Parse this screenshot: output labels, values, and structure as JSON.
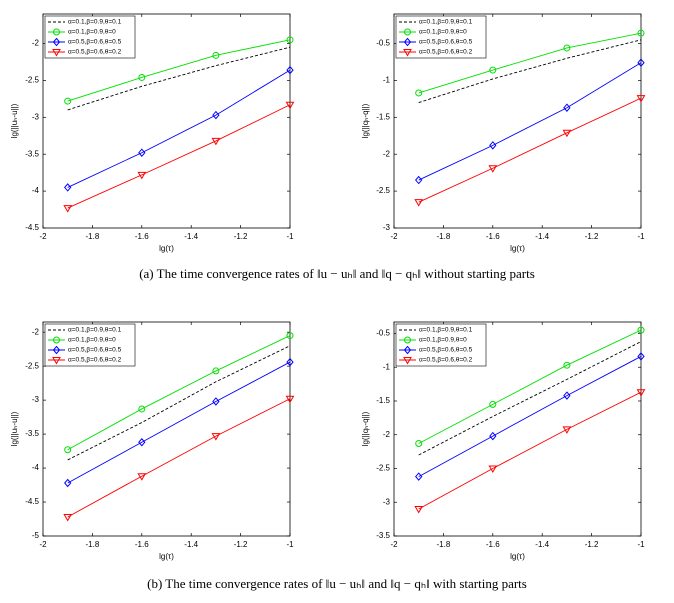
{
  "chart_data": [
    {
      "type": "line",
      "x_label": "lg(τ)",
      "y_label": "lg(||uₕ-u||)",
      "x": [
        -1.9,
        -1.6,
        -1.3,
        -1
      ],
      "xlim": [
        -2,
        -1
      ],
      "xticks": [
        -2,
        -1.8,
        -1.6,
        -1.4,
        -1.2,
        -1
      ],
      "ylim": [
        -4.5,
        -1.6
      ],
      "yticks": [
        -4.5,
        -4,
        -3.5,
        -3,
        -2.5,
        -2
      ],
      "legend": "upper left",
      "series": [
        {
          "name": "α=0.1,β=0.9,θ=0.1",
          "color": "#000000",
          "dash": true,
          "marker": "none",
          "values": [
            -2.9,
            -2.58,
            -2.3,
            -2.05
          ]
        },
        {
          "name": "α=0.1,β=0.9,θ=0",
          "color": "#00e000",
          "dash": false,
          "marker": "circle",
          "values": [
            -2.78,
            -2.46,
            -2.16,
            -1.95
          ]
        },
        {
          "name": "α=0.5,β=0.6,θ=0.5",
          "color": "#0000ff",
          "dash": false,
          "marker": "diamond",
          "values": [
            -3.95,
            -3.48,
            -2.97,
            -2.36
          ]
        },
        {
          "name": "α=0.5,β=0.6,θ=0.2",
          "color": "#ff0000",
          "dash": false,
          "marker": "triangle-down",
          "values": [
            -4.23,
            -3.78,
            -3.32,
            -2.83
          ]
        }
      ]
    },
    {
      "type": "line",
      "x_label": "lg(τ)",
      "y_label": "lg(||qₕ-q||)",
      "x": [
        -1.9,
        -1.6,
        -1.3,
        -1
      ],
      "xlim": [
        -2,
        -1
      ],
      "xticks": [
        -2,
        -1.8,
        -1.6,
        -1.4,
        -1.2,
        -1
      ],
      "ylim": [
        -3,
        -0.1
      ],
      "yticks": [
        -3,
        -2.5,
        -2,
        -1.5,
        -1,
        -0.5
      ],
      "legend": "upper left",
      "series": [
        {
          "name": "α=0.1,β=0.9,θ=0.1",
          "color": "#000000",
          "dash": true,
          "marker": "none",
          "values": [
            -1.3,
            -0.98,
            -0.7,
            -0.45
          ]
        },
        {
          "name": "α=0.1,β=0.9,θ=0",
          "color": "#00e000",
          "dash": false,
          "marker": "circle",
          "values": [
            -1.17,
            -0.86,
            -0.56,
            -0.36
          ]
        },
        {
          "name": "α=0.5,β=0.6,θ=0.5",
          "color": "#0000ff",
          "dash": false,
          "marker": "diamond",
          "values": [
            -2.35,
            -1.88,
            -1.37,
            -0.76
          ]
        },
        {
          "name": "α=0.5,β=0.6,θ=0.2",
          "color": "#ff0000",
          "dash": false,
          "marker": "triangle-down",
          "values": [
            -2.65,
            -2.19,
            -1.71,
            -1.24
          ]
        }
      ]
    },
    {
      "type": "line",
      "x_label": "lg(τ)",
      "y_label": "lg(||uₕ-u||)",
      "x": [
        -1.9,
        -1.6,
        -1.3,
        -1
      ],
      "xlim": [
        -2,
        -1
      ],
      "xticks": [
        -2,
        -1.8,
        -1.6,
        -1.4,
        -1.2,
        -1
      ],
      "ylim": [
        -5,
        -1.85
      ],
      "yticks": [
        -5,
        -4.5,
        -4,
        -3.5,
        -3,
        -2.5,
        -2
      ],
      "legend": "upper left",
      "series": [
        {
          "name": "α=0.1,β=0.9,θ=0.1",
          "color": "#000000",
          "dash": true,
          "marker": "none",
          "values": [
            -3.88,
            -3.33,
            -2.73,
            -2.2
          ]
        },
        {
          "name": "α=0.1,β=0.9,θ=0",
          "color": "#00e000",
          "dash": false,
          "marker": "circle",
          "values": [
            -3.73,
            -3.13,
            -2.57,
            -2.05
          ]
        },
        {
          "name": "α=0.5,β=0.6,θ=0.5",
          "color": "#0000ff",
          "dash": false,
          "marker": "diamond",
          "values": [
            -4.22,
            -3.62,
            -3.02,
            -2.44
          ]
        },
        {
          "name": "α=0.5,β=0.6,θ=0.2",
          "color": "#ff0000",
          "dash": false,
          "marker": "triangle-down",
          "values": [
            -4.72,
            -4.12,
            -3.53,
            -2.98
          ]
        }
      ]
    },
    {
      "type": "line",
      "x_label": "lg(τ)",
      "y_label": "lg(||qₕ-q||)",
      "x": [
        -1.9,
        -1.6,
        -1.3,
        -1
      ],
      "xlim": [
        -2,
        -1
      ],
      "xticks": [
        -2,
        -1.8,
        -1.6,
        -1.4,
        -1.2,
        -1
      ],
      "ylim": [
        -3.5,
        -0.33
      ],
      "yticks": [
        -3.5,
        -3,
        -2.5,
        -2,
        -1.5,
        -1,
        -0.5
      ],
      "legend": "upper left",
      "series": [
        {
          "name": "α=0.1,β=0.9,θ=0.1",
          "color": "#000000",
          "dash": true,
          "marker": "none",
          "values": [
            -2.3,
            -1.73,
            -1.18,
            -0.62
          ]
        },
        {
          "name": "α=0.1,β=0.9,θ=0",
          "color": "#00e000",
          "dash": false,
          "marker": "circle",
          "values": [
            -2.13,
            -1.55,
            -0.97,
            -0.45
          ]
        },
        {
          "name": "α=0.5,β=0.6,θ=0.5",
          "color": "#0000ff",
          "dash": false,
          "marker": "diamond",
          "values": [
            -2.62,
            -2.02,
            -1.42,
            -0.84
          ]
        },
        {
          "name": "α=0.5,β=0.6,θ=0.2",
          "color": "#ff0000",
          "dash": false,
          "marker": "triangle-down",
          "values": [
            -3.1,
            -2.5,
            -1.92,
            -1.37
          ]
        }
      ]
    }
  ],
  "captions": [
    "(a) The time convergence rates of ‖u − uₕ‖ and ‖q − qₕ‖ without starting parts",
    "(b) The time convergence rates of ‖u − uₕ‖ and ‖q − qₕ‖ with starting parts"
  ]
}
